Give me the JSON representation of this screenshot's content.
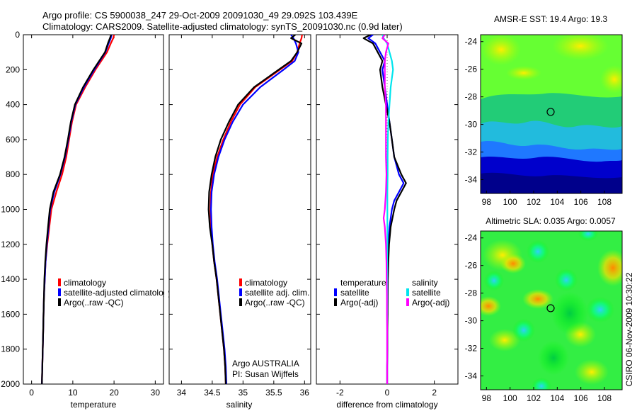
{
  "title": {
    "line1": "Argo profile: CS 5900038_247 29-Oct-2009 20091030_49 29.092S 103.439E",
    "line2": "Climatology: CARS2009. Satellite-adjusted climatology: synTS_20091030.nc (0.9d later)"
  },
  "credit": "CSIRO 06-Nov-2009 10:30:22",
  "colors": {
    "red": "#ff0000",
    "blue": "#0000ff",
    "black": "#000000",
    "cyan": "#00e5ee",
    "magenta": "#ff00ff"
  },
  "chart_data": [
    {
      "id": "temperature",
      "type": "line",
      "xlabel": "temperature",
      "xlim": [
        -2,
        32
      ],
      "ylim": [
        2000,
        0
      ],
      "xticks": [
        "0",
        "10",
        "20",
        "30"
      ],
      "xtick_values": [
        0,
        10,
        20,
        30
      ],
      "yticks": [
        "0",
        "200",
        "400",
        "600",
        "800",
        "1000",
        "1200",
        "1400",
        "1600",
        "1800",
        "2000"
      ],
      "ytick_values": [
        0,
        200,
        400,
        600,
        800,
        1000,
        1200,
        1400,
        1600,
        1800,
        2000
      ],
      "legend": [
        "climatology",
        "satellite-adjusted climatology",
        "Argo(..raw -QC)"
      ],
      "series": [
        {
          "name": "climatology",
          "color": "red",
          "depth": [
            0,
            20,
            50,
            100,
            200,
            300,
            400,
            500,
            600,
            700,
            800,
            900,
            1000,
            1100,
            1200,
            1300,
            1400,
            1500,
            1600,
            1700,
            1800,
            1900,
            2000
          ],
          "values": [
            20.0,
            19.8,
            19.2,
            18.3,
            15.5,
            13.0,
            10.8,
            9.8,
            9.1,
            8.4,
            7.4,
            6.0,
            4.8,
            4.3,
            3.8,
            3.4,
            3.2,
            3.0,
            2.9,
            2.8,
            2.7,
            2.6,
            2.5
          ]
        },
        {
          "name": "satellite-adjusted climatology",
          "color": "blue",
          "depth": [
            0,
            20,
            50,
            100,
            200,
            300,
            400,
            500,
            600,
            700,
            800,
            900,
            1000,
            1100,
            1200,
            1300,
            1400,
            1500,
            1600,
            1700,
            1800,
            1900,
            2000
          ],
          "values": [
            19.4,
            19.2,
            18.7,
            17.9,
            15.2,
            12.7,
            10.6,
            9.6,
            8.9,
            8.1,
            7.0,
            5.5,
            4.5,
            4.1,
            3.7,
            3.4,
            3.2,
            3.0,
            2.9,
            2.8,
            2.7,
            2.6,
            2.5
          ]
        },
        {
          "name": "Argo(..raw -QC)",
          "color": "black",
          "depth": [
            0,
            20,
            50,
            100,
            200,
            300,
            400,
            500,
            600,
            700,
            800,
            900,
            1000,
            1100,
            1200,
            1300,
            1400,
            1500,
            1600,
            1700,
            1800,
            1900,
            2000
          ],
          "values": [
            19.3,
            19.0,
            18.5,
            17.8,
            15.0,
            12.5,
            10.5,
            9.5,
            8.8,
            8.0,
            6.9,
            5.3,
            4.4,
            4.0,
            3.6,
            3.3,
            3.1,
            3.0,
            2.9,
            2.8,
            2.7,
            2.6,
            2.5
          ]
        }
      ]
    },
    {
      "id": "salinity",
      "type": "line",
      "xlabel": "salinity",
      "xlim": [
        33.8,
        36.1
      ],
      "ylim": [
        2000,
        0
      ],
      "xticks": [
        "34",
        "34.5",
        "35",
        "35.5",
        "36"
      ],
      "xtick_values": [
        34,
        34.5,
        35,
        35.5,
        36
      ],
      "legend": [
        "climatology",
        "satellite adj. clim.",
        "Argo(..raw -QC)"
      ],
      "annotations": [
        "Argo AUSTRALIA",
        "PI: Susan Wijffels"
      ],
      "series": [
        {
          "name": "climatology",
          "color": "red",
          "depth": [
            0,
            20,
            50,
            100,
            150,
            200,
            300,
            400,
            500,
            600,
            700,
            800,
            900,
            1000,
            1100,
            1200,
            1300,
            1400,
            1500,
            1600,
            1700,
            1800,
            1900,
            2000
          ],
          "values": [
            35.96,
            35.95,
            35.92,
            35.88,
            35.8,
            35.6,
            35.2,
            34.95,
            34.8,
            34.68,
            34.58,
            34.51,
            34.48,
            34.47,
            34.48,
            34.5,
            34.53,
            34.57,
            34.6,
            34.63,
            34.66,
            34.69,
            34.71,
            34.72
          ]
        },
        {
          "name": "satellite adj. clim.",
          "color": "blue",
          "depth": [
            0,
            20,
            50,
            100,
            150,
            200,
            300,
            400,
            500,
            600,
            700,
            800,
            900,
            1000,
            1100,
            1200,
            1300,
            1400,
            1500,
            1600,
            1700,
            1800,
            1900,
            2000
          ],
          "values": [
            35.78,
            35.82,
            35.86,
            35.9,
            35.84,
            35.66,
            35.28,
            35.0,
            34.83,
            34.7,
            34.6,
            34.53,
            34.49,
            34.48,
            34.49,
            34.51,
            34.54,
            34.58,
            34.61,
            34.64,
            34.67,
            34.7,
            34.72,
            34.73
          ]
        },
        {
          "name": "Argo(..raw -QC)",
          "color": "black",
          "depth": [
            0,
            20,
            50,
            100,
            150,
            200,
            300,
            400,
            500,
            600,
            700,
            800,
            900,
            1000,
            1100,
            1200,
            1300,
            1400,
            1500,
            1600,
            1700,
            1800,
            1900,
            2000
          ],
          "values": [
            35.85,
            35.78,
            35.95,
            35.88,
            35.78,
            35.58,
            35.18,
            34.92,
            34.77,
            34.64,
            34.55,
            34.49,
            34.45,
            34.44,
            34.46,
            34.5,
            34.53,
            34.57,
            34.6,
            34.63,
            34.66,
            34.69,
            34.71,
            34.72
          ]
        }
      ]
    },
    {
      "id": "difference",
      "type": "line",
      "xlabel": "difference from climatology",
      "xlim": [
        -3,
        3
      ],
      "ylim": [
        2000,
        0
      ],
      "xticks": [
        "-2",
        "0",
        "2"
      ],
      "xtick_values": [
        -2,
        0,
        2
      ],
      "legend_left_title": "temperature",
      "legend_left": [
        "satellite",
        "Argo(-adj)"
      ],
      "legend_right_title": "salinity",
      "legend_right": [
        "satellite",
        "Argo(-adj)"
      ],
      "series": [
        {
          "name": "temperature satellite",
          "color": "blue",
          "depth": [
            0,
            20,
            50,
            100,
            150,
            200,
            300,
            400,
            500,
            600,
            700,
            800,
            850,
            900,
            950,
            1000,
            1100,
            1200,
            1300,
            1400,
            1500,
            1600,
            1700,
            1800,
            1900,
            2000
          ],
          "values": [
            -0.6,
            -0.8,
            -0.5,
            -0.3,
            -0.1,
            -0.2,
            -0.1,
            0.0,
            0.1,
            0.2,
            0.3,
            0.5,
            0.7,
            0.5,
            0.3,
            0.2,
            0.1,
            0.05,
            0.03,
            0.02,
            0.02,
            0.01,
            0.01,
            0.01,
            0.0,
            0.0
          ]
        },
        {
          "name": "temperature Argo(-adj)",
          "color": "black",
          "depth": [
            0,
            20,
            50,
            100,
            150,
            200,
            300,
            400,
            500,
            600,
            700,
            800,
            850,
            900,
            950,
            1000,
            1100,
            1200,
            1300,
            1400,
            1500,
            1600,
            1700,
            1800,
            1900,
            2000
          ],
          "values": [
            -0.7,
            -1.0,
            -0.6,
            -0.4,
            -0.2,
            -0.3,
            -0.2,
            -0.05,
            0.1,
            0.2,
            0.3,
            0.6,
            0.8,
            0.6,
            0.4,
            0.3,
            0.15,
            0.08,
            0.05,
            0.03,
            0.02,
            0.02,
            0.01,
            0.01,
            0.0,
            0.0
          ]
        },
        {
          "name": "salinity satellite",
          "color": "cyan",
          "depth": [
            0,
            20,
            50,
            100,
            150,
            200,
            300,
            400,
            500,
            600,
            700,
            800,
            900,
            1000,
            1100,
            1200,
            1300,
            1400,
            1500,
            1600,
            1700,
            1800,
            1900,
            2000
          ],
          "values": [
            -0.2,
            -0.15,
            0.0,
            0.1,
            0.2,
            0.25,
            0.15,
            0.1,
            0.05,
            0.03,
            0.02,
            0.02,
            0.01,
            0.01,
            0.01,
            0.01,
            0.0,
            0.0,
            0.0,
            0.0,
            0.0,
            0.0,
            0.0,
            0.0
          ]
        },
        {
          "name": "salinity Argo(-adj)",
          "color": "magenta",
          "depth": [
            0,
            20,
            50,
            100,
            150,
            200,
            300,
            400,
            500,
            600,
            700,
            800,
            900,
            1000,
            1050,
            1100,
            1200,
            1300,
            1400,
            1500,
            1600,
            1700,
            1800,
            1900,
            2000
          ],
          "values": [
            -0.1,
            -0.2,
            0.05,
            -0.05,
            -0.1,
            -0.1,
            -0.1,
            -0.05,
            -0.05,
            -0.05,
            -0.05,
            -0.03,
            -0.05,
            -0.1,
            -0.15,
            -0.1,
            -0.05,
            -0.03,
            -0.02,
            -0.01,
            -0.01,
            0.0,
            0.0,
            0.0,
            0.0
          ]
        }
      ]
    },
    {
      "id": "sst_map",
      "type": "heatmap",
      "title": "AMSR-E SST: 19.4 Argo: 19.3",
      "xlim": [
        97.5,
        109.5
      ],
      "ylim": [
        -35,
        -23.5
      ],
      "xticks": [
        "98",
        "100",
        "102",
        "104",
        "106",
        "108"
      ],
      "xtick_values": [
        98,
        100,
        102,
        104,
        106,
        108
      ],
      "yticks": [
        "-24",
        "-26",
        "-28",
        "-30",
        "-32",
        "-34"
      ],
      "ytick_values": [
        -24,
        -26,
        -28,
        -30,
        -32,
        -34
      ],
      "marker": {
        "lon": 103.439,
        "lat": -29.092
      }
    },
    {
      "id": "sla_map",
      "type": "heatmap",
      "title": "Altimetric SLA: 0.035 Argo: 0.0057",
      "xlim": [
        97.5,
        109.5
      ],
      "ylim": [
        -35,
        -23.5
      ],
      "xticks": [
        "98",
        "100",
        "102",
        "104",
        "106",
        "108"
      ],
      "xtick_values": [
        98,
        100,
        102,
        104,
        106,
        108
      ],
      "yticks": [
        "-24",
        "-26",
        "-28",
        "-30",
        "-32",
        "-34"
      ],
      "ytick_values": [
        -24,
        -26,
        -28,
        -30,
        -32,
        -34
      ],
      "marker": {
        "lon": 103.439,
        "lat": -29.092
      }
    }
  ]
}
